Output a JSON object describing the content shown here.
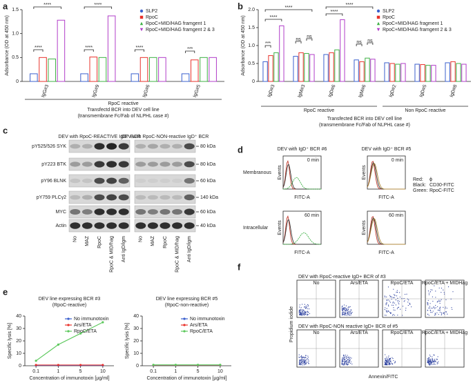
{
  "panels": {
    "letters": [
      "a",
      "b",
      "c",
      "d",
      "e",
      "f"
    ]
  },
  "chart_data": [
    {
      "type": "bar",
      "y_label": "Adsorbance (OD at 450 nm)",
      "categories": [
        "IgG#3",
        "IgG#9",
        "IgG#6",
        "IgG#5"
      ],
      "series": [
        {
          "name": "SLP2",
          "color": "#3a5fcd",
          "values": [
            0.16,
            0.16,
            0.16,
            0.16
          ]
        },
        {
          "name": "RpoC",
          "color": "#e8312a",
          "values": [
            0.5,
            0.51,
            0.5,
            0.45
          ]
        },
        {
          "name": "RpoC+MID/HAG framgent 1",
          "color": "#3cb043",
          "values": [
            0.47,
            0.5,
            0.5,
            0.5
          ]
        },
        {
          "name": "RpoC+MID/HAG framgent 2 & 3",
          "color": "#b03cc8",
          "values": [
            1.28,
            1.37,
            0.5,
            0.5
          ]
        }
      ],
      "ylim": [
        0,
        1.5
      ],
      "yticks": [
        0,
        0.5,
        {
          "value": 1,
          "label": "1.0"
        },
        1.5
      ],
      "group_labels": [
        "RpoC reactive"
      ],
      "x_label": "Transfectd BCR into DEV cell line",
      "x_label_2": "(transmembrane Fc/Fab of NLPHL case #)",
      "annotations": [
        "****",
        "****",
        "****",
        "***",
        "****",
        "****"
      ]
    },
    {
      "type": "bar",
      "y_label": "Adsorbance (OD at 450 nm)",
      "categories": [
        "IgD#3",
        "IgM#3",
        "IgD#6",
        "IgM#6",
        "IgD#2",
        "IgD#5",
        "IgD#8"
      ],
      "series": [
        {
          "name": "SLP2",
          "color": "#3a5fcd",
          "values": [
            0.55,
            0.7,
            0.75,
            0.6,
            0.52,
            0.48,
            0.52
          ]
        },
        {
          "name": "RpoC",
          "color": "#e8312a",
          "values": [
            0.72,
            0.8,
            0.8,
            0.55,
            0.5,
            0.47,
            0.55
          ]
        },
        {
          "name": "RpoC+MID/HAG fragment 1",
          "color": "#3cb043",
          "values": [
            0.8,
            0.78,
            0.88,
            0.65,
            0.48,
            0.45,
            0.5
          ]
        },
        {
          "name": "RpoC+MID/HAG framgent 2 & 3",
          "color": "#b03cc8",
          "values": [
            1.55,
            0.75,
            1.72,
            0.62,
            0.5,
            0.45,
            0.48
          ]
        }
      ],
      "ylim": [
        0,
        2
      ],
      "yticks": [
        0,
        0.5,
        {
          "value": 1,
          "label": "1.0"
        },
        1.5,
        {
          "value": 2,
          "label": "2.0"
        }
      ],
      "group_labels": [
        "RpoC reactive",
        "Non RpoC reactive"
      ],
      "x_label": "Transfected BCR into DEV cell line",
      "x_label_2": "(transmembrane Fc/Fab of NLPHL case #)",
      "annotations": [
        "****",
        "****",
        "****",
        "****",
        "***",
        "ns",
        "ns",
        "ns",
        "ns"
      ]
    },
    {
      "type": "line",
      "title": "DEV line expressing BCR #3",
      "subtitle": "(RpoC-reactive)",
      "x_label": "Concentration of immunotoxin [µg/ml]",
      "y_label": "Specific lysis [%]",
      "categories": [
        "0.1",
        "1",
        "5",
        "10"
      ],
      "series": [
        {
          "name": "No immunotoxin",
          "color": "#3a5fcd",
          "values": [
            0.3,
            0.3,
            0.3,
            0.3
          ]
        },
        {
          "name": "Ars/ETA",
          "color": "#e8312a",
          "values": [
            0.6,
            0.6,
            0.6,
            0.6
          ]
        },
        {
          "name": "RpoC/ETA",
          "color": "#5cc85c",
          "values": [
            4,
            17,
            26,
            35
          ]
        }
      ],
      "ylim": [
        0,
        40
      ],
      "yticks": [
        0,
        10,
        20,
        30,
        40
      ]
    },
    {
      "type": "line",
      "title": "DEV line expressing BCR #5",
      "subtitle": "(RpoC-non-reactive)",
      "x_label": "Concentration of immunotoxin [µg/ml]",
      "y_label": "Specific lysis [%]",
      "categories": [
        "0.1",
        "1",
        "5",
        "10"
      ],
      "series": [
        {
          "name": "No immunotoxin",
          "color": "#3a5fcd",
          "values": [
            0.3,
            0.3,
            0.3,
            0.3
          ]
        },
        {
          "name": "Ars/ETA",
          "color": "#e8312a",
          "values": [
            0.5,
            0.5,
            0.5,
            0.5
          ]
        },
        {
          "name": "RpoC/ETA",
          "color": "#5cc85c",
          "values": [
            0.7,
            0.7,
            0.7,
            0.7
          ]
        }
      ],
      "ylim": [
        0,
        40
      ],
      "yticks": [
        0,
        10,
        20,
        30,
        40
      ]
    }
  ],
  "western_blot": {
    "headers": [
      "DEV with RpoC-REACTIVE IgD⁺ BCR",
      "DEV with RpoC-NON-reactive IgD⁺ BCR"
    ],
    "rows": [
      {
        "label": "pY525/526 SYK",
        "size": "80 kDa"
      },
      {
        "label": "pY223 BTK",
        "size": "80 kDa"
      },
      {
        "label": "pY96 BLNK",
        "size": "60 kDa"
      },
      {
        "label": "pY759 PLCγ2",
        "size": "140 kDa"
      },
      {
        "label": "MYC",
        "size": "60 kDa"
      },
      {
        "label": "Actin",
        "size": "40 kDa"
      }
    ],
    "lanes": [
      "No",
      "MAZ",
      "RpoC",
      "RpoC & MID/hag",
      "Anti IgD/igm"
    ]
  },
  "flow_histograms": {
    "titles": [
      "DEV with IgD⁺ BCR #6",
      "DEV with IgD⁺ BCR #5"
    ],
    "rows": [
      "Membranous",
      "Intracellular"
    ],
    "times": [
      "0 min",
      "60 min"
    ],
    "y_label": "Events",
    "x_label": "FITC-A",
    "legend": [
      {
        "key": "Red:",
        "value": "ϕ"
      },
      {
        "key": "Black:",
        "value": "CD30-FITC"
      },
      {
        "key": "Green:",
        "value": "RpoC-FITC"
      }
    ]
  },
  "flow_plots": {
    "rows": [
      "DEV with RpoC-reactive IgD+ BCR of #3",
      "DEV with RpoC-NON reactive IgD+ BCR of #5"
    ],
    "conditions": [
      "No",
      "Ars/ETA",
      "RpoC/ETA",
      "RpoC/ETA + MIDHag"
    ],
    "y_label": "Propidium iodide",
    "x_label": "Annexin/FITC"
  }
}
